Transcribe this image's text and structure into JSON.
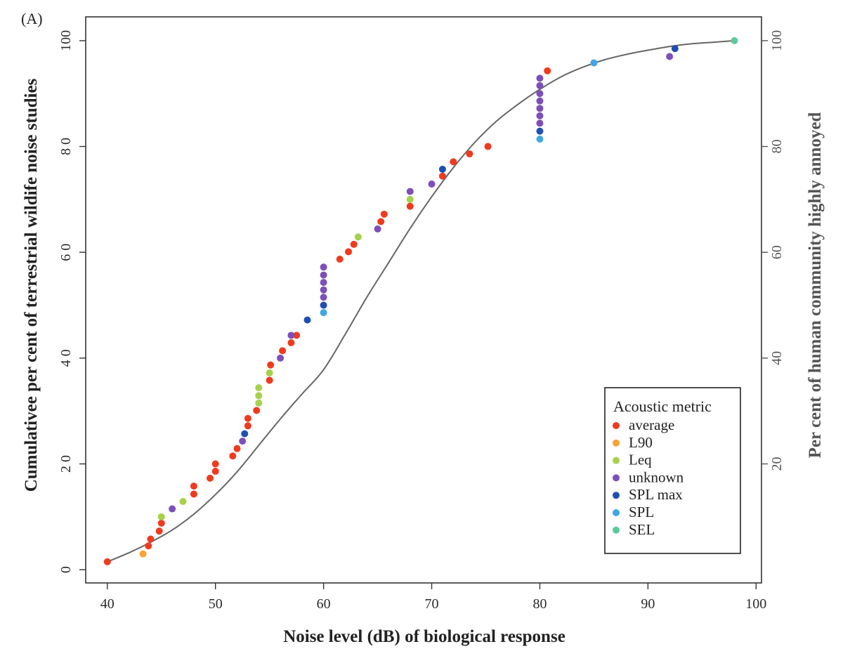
{
  "panel_label": "(A)",
  "chart_data": {
    "type": "scatter",
    "xlabel": "Noise level (dB) of biological response",
    "ylabel": "Cumulativee per cent of terrestrial wildife noise studies",
    "y2label": "Per cent of human community highly annoyed",
    "xlim": [
      38,
      100.5
    ],
    "ylim": [
      -2.5,
      104.5
    ],
    "xticks": [
      "40",
      "50",
      "60",
      "70",
      "80",
      "90",
      "100"
    ],
    "yticks": [
      "0",
      "2 0",
      "4 0",
      "6 0",
      "8 0",
      "100"
    ],
    "y2ticks": [
      "20",
      "40",
      "60",
      "80",
      "100"
    ],
    "grid": false,
    "legend_position": "bottom-right",
    "legend": {
      "title": "Acoustic metric",
      "items": [
        {
          "label": "average",
          "color": "#f03a1e"
        },
        {
          "label": "L90",
          "color": "#f7a336"
        },
        {
          "label": "Leq",
          "color": "#a6d14a"
        },
        {
          "label": "unknown",
          "color": "#7d4fb8"
        },
        {
          "label": "SPL max",
          "color": "#1f4fb0"
        },
        {
          "label": "SPL",
          "color": "#3fa7e3"
        },
        {
          "label": "SEL",
          "color": "#5cc99a"
        }
      ]
    },
    "curve": {
      "color": "#666666",
      "x": [
        40,
        42,
        44,
        46,
        48,
        50,
        52,
        54,
        56,
        58,
        60,
        62,
        64,
        66,
        68,
        70,
        72,
        74,
        76,
        78,
        80,
        82,
        84,
        86,
        88,
        90,
        92,
        94,
        96,
        98
      ],
      "y": [
        1.5,
        3.2,
        5.2,
        7.5,
        10.5,
        14.2,
        18.5,
        23.5,
        28.5,
        33.2,
        37.8,
        44.5,
        51.5,
        58,
        64.5,
        70.5,
        76,
        80.8,
        84.8,
        88,
        90.8,
        93.2,
        95,
        96.4,
        97.4,
        98.2,
        98.9,
        99.4,
        99.7,
        100
      ]
    },
    "series": [
      {
        "name": "average",
        "color": "#f03a1e",
        "points": [
          [
            40,
            1.5
          ],
          [
            43.8,
            4.5
          ],
          [
            44,
            5.8
          ],
          [
            44.8,
            7.3
          ],
          [
            45,
            8.8
          ],
          [
            48,
            14.3
          ],
          [
            48,
            15.8
          ],
          [
            49.5,
            17.3
          ],
          [
            50,
            18.6
          ],
          [
            50,
            20
          ],
          [
            51.6,
            21.5
          ],
          [
            52,
            22.9
          ],
          [
            53,
            27.2
          ],
          [
            53,
            28.6
          ],
          [
            53.8,
            30.1
          ],
          [
            55,
            35.8
          ],
          [
            55.1,
            38.7
          ],
          [
            56.2,
            41.4
          ],
          [
            57,
            42.9
          ],
          [
            57.5,
            44.3
          ],
          [
            61.5,
            58.7
          ],
          [
            62.3,
            60.1
          ],
          [
            62.8,
            61.5
          ],
          [
            65.3,
            65.8
          ],
          [
            65.6,
            67.2
          ],
          [
            68,
            68.7
          ],
          [
            71,
            74.4
          ],
          [
            72,
            77.1
          ],
          [
            73.5,
            78.6
          ],
          [
            75.2,
            80
          ],
          [
            80.7,
            94.3
          ]
        ]
      },
      {
        "name": "L90",
        "color": "#f7a336",
        "points": [
          [
            43.3,
            3
          ]
        ]
      },
      {
        "name": "Leq",
        "color": "#a6d14a",
        "points": [
          [
            45,
            10
          ],
          [
            47,
            12.9
          ],
          [
            54,
            31.5
          ],
          [
            54,
            32.9
          ],
          [
            54,
            34.4
          ],
          [
            55,
            37.2
          ],
          [
            63.2,
            62.9
          ],
          [
            68,
            70
          ]
        ]
      },
      {
        "name": "unknown",
        "color": "#7d4fb8",
        "points": [
          [
            46,
            11.5
          ],
          [
            52.5,
            24.3
          ],
          [
            56,
            40
          ],
          [
            57,
            44.3
          ],
          [
            60,
            51.5
          ],
          [
            60,
            52.9
          ],
          [
            60,
            54.3
          ],
          [
            60,
            55.7
          ],
          [
            60,
            57.2
          ],
          [
            65,
            64.4
          ],
          [
            68,
            71.5
          ],
          [
            70,
            72.9
          ],
          [
            80,
            84.4
          ],
          [
            80,
            85.8
          ],
          [
            80,
            87.2
          ],
          [
            80,
            88.6
          ],
          [
            80,
            90
          ],
          [
            80,
            91.5
          ],
          [
            80,
            92.9
          ],
          [
            92,
            97
          ]
        ]
      },
      {
        "name": "SPL max",
        "color": "#1f4fb0",
        "points": [
          [
            52.7,
            25.7
          ],
          [
            58.5,
            47.2
          ],
          [
            60,
            50
          ],
          [
            71,
            75.7
          ],
          [
            80,
            82.9
          ],
          [
            92.5,
            98.5
          ]
        ]
      },
      {
        "name": "SPL",
        "color": "#3fa7e3",
        "points": [
          [
            60,
            48.6
          ],
          [
            80,
            81.4
          ],
          [
            85,
            95.8
          ]
        ]
      },
      {
        "name": "SEL",
        "color": "#5cc99a",
        "points": [
          [
            98,
            100
          ]
        ]
      }
    ]
  }
}
